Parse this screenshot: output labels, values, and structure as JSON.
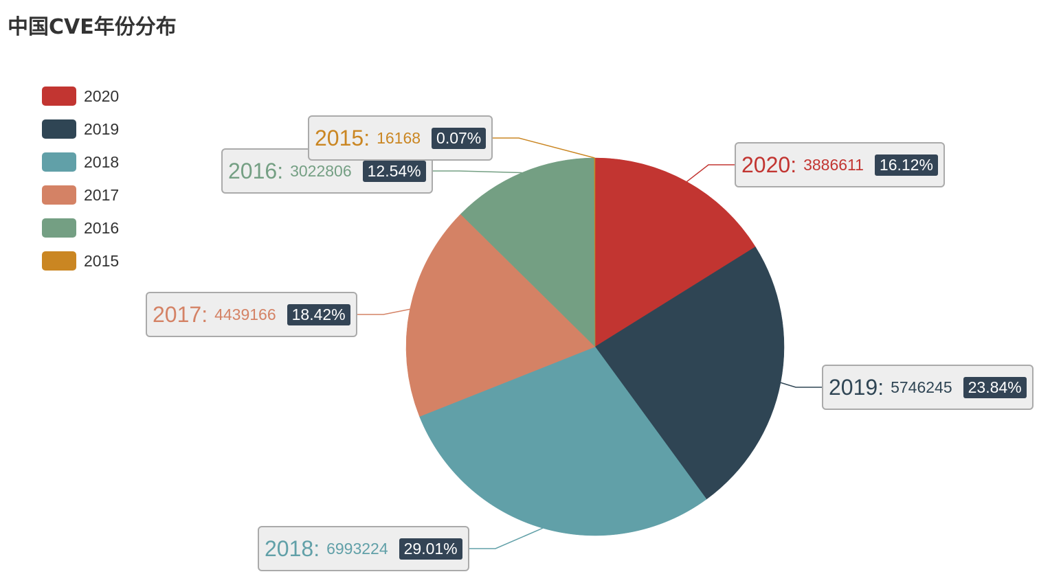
{
  "title": "中国CVE年份分布",
  "chart_data": {
    "type": "pie",
    "title": "中国CVE年份分布",
    "legend_position": "top-left",
    "slices": [
      {
        "name": "2020",
        "value": 3886611,
        "percent": "16.12%",
        "color": "#c23531"
      },
      {
        "name": "2019",
        "value": 5746245,
        "percent": "23.84%",
        "color": "#2f4554"
      },
      {
        "name": "2018",
        "value": 6993224,
        "percent": "29.01%",
        "color": "#61a0a8"
      },
      {
        "name": "2017",
        "value": 4439166,
        "percent": "18.42%",
        "color": "#d48265"
      },
      {
        "name": "2016",
        "value": 3022806,
        "percent": "12.54%",
        "color": "#749f83"
      },
      {
        "name": "2015",
        "value": 16168,
        "percent": "0.07%",
        "color": "#ca8622"
      }
    ]
  }
}
